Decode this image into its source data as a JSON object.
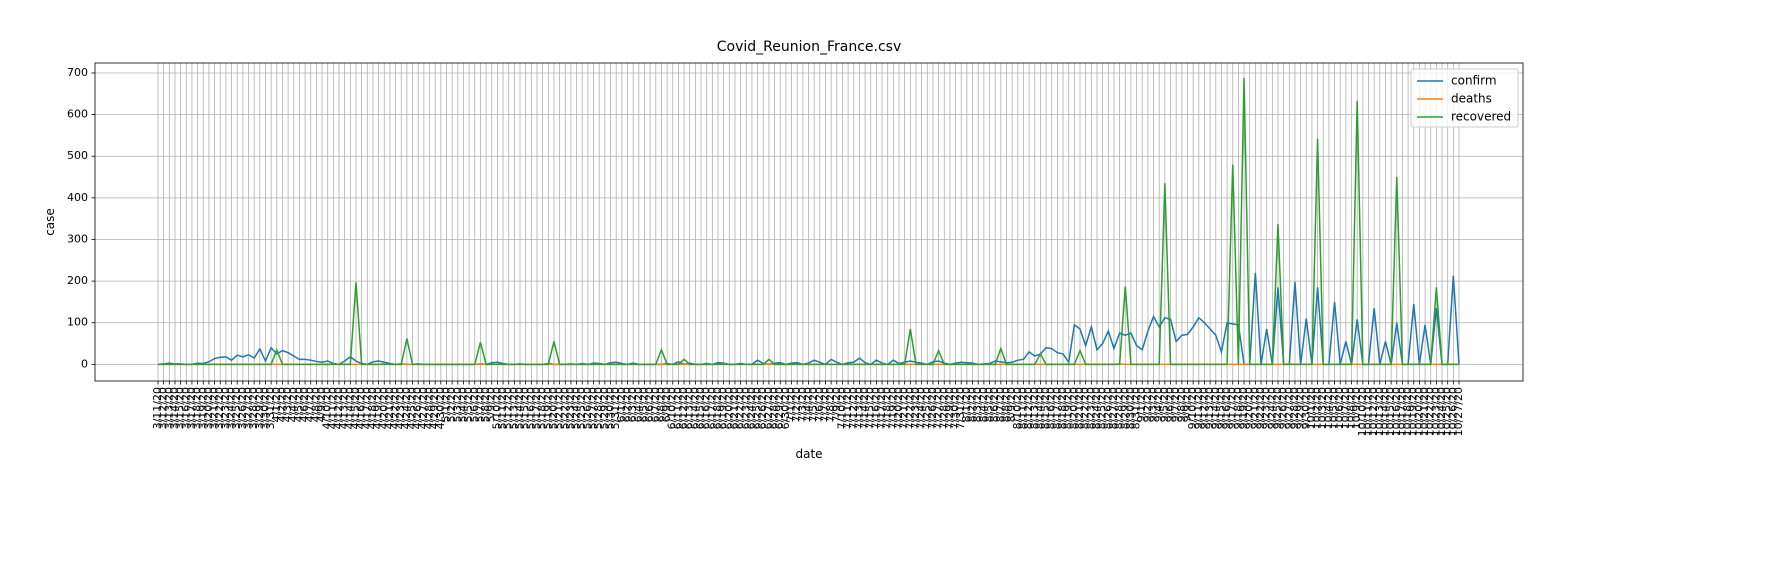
{
  "chart_data": {
    "type": "line",
    "title": "Covid_Reunion_France.csv",
    "x_label": "date",
    "y_label": "case",
    "categories": [
      "3/11/20",
      "3/12/20",
      "3/13/20",
      "3/14/20",
      "3/15/20",
      "3/16/20",
      "3/17/20",
      "3/18/20",
      "3/19/20",
      "3/20/20",
      "3/21/20",
      "3/22/20",
      "3/23/20",
      "3/24/20",
      "3/25/20",
      "3/26/20",
      "3/27/20",
      "3/28/20",
      "3/29/20",
      "3/30/20",
      "3/31/20",
      "4/1/20",
      "4/2/20",
      "4/3/20",
      "4/4/20",
      "4/5/20",
      "4/6/20",
      "4/7/20",
      "4/8/20",
      "4/9/20",
      "4/10/20",
      "4/11/20",
      "4/12/20",
      "4/13/20",
      "4/14/20",
      "4/15/20",
      "4/16/20",
      "4/17/20",
      "4/18/20",
      "4/19/20",
      "4/20/20",
      "4/21/20",
      "4/22/20",
      "4/23/20",
      "4/24/20",
      "4/25/20",
      "4/26/20",
      "4/27/20",
      "4/28/20",
      "4/29/20",
      "4/30/20",
      "5/1/20",
      "5/2/20",
      "5/3/20",
      "5/4/20",
      "5/5/20",
      "5/6/20",
      "5/7/20",
      "5/8/20",
      "5/9/20",
      "5/10/20",
      "5/11/20",
      "5/12/20",
      "5/13/20",
      "5/14/20",
      "5/15/20",
      "5/16/20",
      "5/17/20",
      "5/18/20",
      "5/19/20",
      "5/20/20",
      "5/21/20",
      "5/22/20",
      "5/23/20",
      "5/24/20",
      "5/25/20",
      "5/26/20",
      "5/27/20",
      "5/28/20",
      "5/29/20",
      "5/30/20",
      "5/31/20",
      "6/1/20",
      "6/2/20",
      "6/3/20",
      "6/4/20",
      "6/5/20",
      "6/6/20",
      "6/7/20",
      "6/8/20",
      "6/9/20",
      "6/10/20",
      "6/11/20",
      "6/12/20",
      "6/13/20",
      "6/14/20",
      "6/15/20",
      "6/16/20",
      "6/17/20",
      "6/18/20",
      "6/19/20",
      "6/20/20",
      "6/21/20",
      "6/22/20",
      "6/23/20",
      "6/24/20",
      "6/25/20",
      "6/26/20",
      "6/27/20",
      "6/28/20",
      "6/29/20",
      "6/30/20",
      "7/1/20",
      "7/2/20",
      "7/3/20",
      "7/4/20",
      "7/5/20",
      "7/6/20",
      "7/7/20",
      "7/8/20",
      "7/9/20",
      "7/10/20",
      "7/11/20",
      "7/12/20",
      "7/13/20",
      "7/14/20",
      "7/15/20",
      "7/16/20",
      "7/17/20",
      "7/18/20",
      "7/19/20",
      "7/20/20",
      "7/21/20",
      "7/22/20",
      "7/23/20",
      "7/24/20",
      "7/25/20",
      "7/26/20",
      "7/27/20",
      "7/28/20",
      "7/29/20",
      "7/30/20",
      "7/31/20",
      "8/1/20",
      "8/2/20",
      "8/3/20",
      "8/4/20",
      "8/5/20",
      "8/6/20",
      "8/7/20",
      "8/8/20",
      "8/9/20",
      "8/10/20",
      "8/11/20",
      "8/12/20",
      "8/13/20",
      "8/14/20",
      "8/15/20",
      "8/16/20",
      "8/17/20",
      "8/18/20",
      "8/19/20",
      "8/20/20",
      "8/21/20",
      "8/22/20",
      "8/23/20",
      "8/24/20",
      "8/25/20",
      "8/26/20",
      "8/27/20",
      "8/28/20",
      "8/29/20",
      "8/30/20",
      "8/31/20",
      "9/1/20",
      "9/2/20",
      "9/3/20",
      "9/4/20",
      "9/5/20",
      "9/6/20",
      "9/7/20",
      "9/8/20",
      "9/9/20",
      "9/10/20",
      "9/11/20",
      "9/12/20",
      "9/13/20",
      "9/14/20",
      "9/15/20",
      "9/16/20",
      "9/17/20",
      "9/18/20",
      "9/19/20",
      "9/20/20",
      "9/21/20",
      "9/22/20",
      "9/23/20",
      "9/24/20",
      "9/25/20",
      "9/26/20",
      "9/27/20",
      "9/28/20",
      "9/29/20",
      "9/30/20",
      "10/1/20",
      "10/2/20",
      "10/3/20",
      "10/4/20",
      "10/5/20",
      "10/6/20",
      "10/7/20",
      "10/8/20",
      "10/9/20",
      "10/10/20",
      "10/11/20",
      "10/12/20",
      "10/13/20",
      "10/14/20",
      "10/15/20",
      "10/16/20",
      "10/17/20",
      "10/18/20",
      "10/19/20",
      "10/20/20",
      "10/21/20",
      "10/22/20",
      "10/23/20",
      "10/24/20",
      "10/25/20",
      "10/26/20",
      "10/27/20"
    ],
    "series": [
      {
        "name": "confirm",
        "color": "#1f77b4",
        "values": [
          0,
          1,
          3,
          1,
          1,
          0,
          0,
          3,
          2,
          6,
          14,
          17,
          18,
          10,
          22,
          18,
          23,
          15,
          37,
          8,
          40,
          25,
          33,
          28,
          20,
          12,
          12,
          10,
          7,
          5,
          8,
          2,
          0,
          8,
          18,
          8,
          2,
          0,
          6,
          8,
          5,
          2,
          0,
          1,
          0,
          0,
          1,
          0,
          0,
          0,
          0,
          0,
          0,
          0,
          0,
          0,
          0,
          1,
          0,
          4,
          5,
          2,
          0,
          0,
          1,
          0,
          0,
          0,
          0,
          2,
          0,
          0,
          0,
          1,
          0,
          2,
          0,
          3,
          2,
          0,
          4,
          5,
          2,
          0,
          3,
          0,
          0,
          0,
          0,
          0,
          2,
          0,
          6,
          0,
          3,
          0,
          0,
          2,
          0,
          4,
          3,
          0,
          0,
          2,
          0,
          0,
          10,
          2,
          0,
          3,
          4,
          0,
          3,
          4,
          0,
          3,
          10,
          5,
          0,
          12,
          5,
          0,
          4,
          5,
          15,
          4,
          0,
          10,
          3,
          0,
          10,
          2,
          5,
          8,
          5,
          3,
          0,
          6,
          8,
          3,
          0,
          3,
          5,
          4,
          3,
          0,
          1,
          2,
          8,
          6,
          4,
          5,
          10,
          12,
          30,
          20,
          25,
          40,
          38,
          28,
          25,
          5,
          95,
          85,
          45,
          90,
          35,
          50,
          80,
          38,
          75,
          70,
          75,
          45,
          35,
          80,
          115,
          90,
          112,
          108,
          55,
          70,
          72,
          90,
          112,
          100,
          85,
          70,
          30,
          100,
          97,
          95,
          0,
          0,
          220,
          0,
          85,
          0,
          185,
          0,
          0,
          198,
          0,
          110,
          0,
          185,
          0,
          0,
          150,
          0,
          55,
          0,
          108,
          0,
          0,
          135,
          0,
          55,
          0,
          100,
          0,
          0,
          145,
          0,
          95,
          0,
          135,
          0,
          0,
          213,
          0
        ]
      },
      {
        "name": "deaths",
        "color": "#ff7f0e",
        "values": [
          0,
          0,
          0,
          0,
          0,
          0,
          0,
          0,
          0,
          0,
          0,
          0,
          0,
          0,
          0,
          0,
          0,
          0,
          0,
          0,
          0,
          0,
          0,
          0,
          0,
          0,
          0,
          0,
          0,
          0,
          0,
          0,
          0,
          0,
          0,
          0,
          0,
          0,
          0,
          0,
          1,
          0,
          0,
          0,
          0,
          0,
          0,
          0,
          0,
          0,
          0,
          0,
          0,
          0,
          0,
          0,
          0,
          0,
          0,
          0,
          0,
          0,
          0,
          0,
          0,
          0,
          0,
          0,
          0,
          0,
          0,
          0,
          0,
          0,
          0,
          0,
          0,
          0,
          0,
          0,
          0,
          0,
          0,
          0,
          0,
          0,
          0,
          0,
          0,
          0,
          0,
          0,
          0,
          0,
          0,
          0,
          0,
          0,
          0,
          0,
          1,
          0,
          0,
          0,
          0,
          0,
          0,
          0,
          0,
          0,
          0,
          0,
          0,
          0,
          0,
          0,
          0,
          0,
          0,
          0,
          0,
          0,
          0,
          0,
          0,
          0,
          0,
          0,
          0,
          0,
          0,
          0,
          0,
          0,
          0,
          0,
          0,
          0,
          0,
          0,
          0,
          0,
          0,
          0,
          0,
          0,
          0,
          0,
          0,
          0,
          0,
          0,
          0,
          0,
          0,
          0,
          0,
          0,
          0,
          0,
          0,
          0,
          0,
          0,
          0,
          0,
          0,
          0,
          0,
          0,
          1,
          0,
          0,
          0,
          0,
          0,
          0,
          0,
          0,
          0,
          0,
          0,
          0,
          0,
          0,
          0,
          0,
          0,
          0,
          0,
          0,
          0,
          0,
          0,
          0,
          0,
          0,
          0,
          0,
          0,
          1,
          0,
          0,
          0,
          0,
          0,
          0,
          0,
          0,
          0,
          0,
          0,
          0,
          0,
          0,
          0,
          0,
          0,
          0,
          0,
          0,
          0,
          0,
          0,
          0,
          0,
          0,
          0,
          0,
          0,
          0
        ]
      },
      {
        "name": "recovered",
        "color": "#2ca02c",
        "values": [
          0,
          0,
          0,
          0,
          0,
          0,
          0,
          0,
          0,
          0,
          0,
          0,
          0,
          0,
          0,
          0,
          0,
          0,
          0,
          0,
          0,
          35,
          0,
          0,
          0,
          0,
          0,
          0,
          0,
          0,
          0,
          0,
          0,
          0,
          0,
          197,
          0,
          0,
          0,
          0,
          0,
          0,
          0,
          0,
          62,
          0,
          0,
          0,
          0,
          0,
          0,
          0,
          0,
          0,
          0,
          0,
          0,
          53,
          0,
          0,
          0,
          0,
          0,
          0,
          0,
          0,
          0,
          0,
          0,
          0,
          55,
          0,
          0,
          0,
          0,
          0,
          0,
          0,
          0,
          0,
          0,
          0,
          0,
          0,
          0,
          0,
          0,
          0,
          0,
          35,
          0,
          0,
          0,
          12,
          0,
          0,
          0,
          0,
          0,
          0,
          0,
          0,
          0,
          0,
          0,
          0,
          0,
          0,
          12,
          0,
          0,
          0,
          0,
          0,
          0,
          0,
          0,
          0,
          0,
          0,
          0,
          0,
          0,
          0,
          0,
          0,
          0,
          0,
          0,
          0,
          0,
          0,
          0,
          85,
          0,
          0,
          0,
          0,
          33,
          0,
          0,
          0,
          0,
          0,
          0,
          0,
          0,
          0,
          0,
          38,
          0,
          0,
          0,
          0,
          0,
          0,
          25,
          0,
          0,
          0,
          0,
          0,
          0,
          33,
          0,
          0,
          0,
          0,
          0,
          0,
          0,
          187,
          0,
          0,
          0,
          0,
          0,
          0,
          435,
          0,
          0,
          0,
          0,
          0,
          0,
          0,
          0,
          0,
          0,
          0,
          480,
          0,
          688,
          0,
          0,
          0,
          0,
          0,
          337,
          0,
          0,
          0,
          0,
          0,
          0,
          542,
          0,
          0,
          0,
          0,
          0,
          0,
          633,
          0,
          0,
          0,
          0,
          0,
          0,
          450,
          0,
          0,
          0,
          0,
          0,
          0,
          185,
          0,
          0,
          0,
          0
        ]
      }
    ],
    "ylim": [
      -40,
      724
    ],
    "yticks": [
      0,
      100,
      200,
      300,
      400,
      500,
      600,
      700
    ],
    "grid": true,
    "legend": "upper right"
  }
}
